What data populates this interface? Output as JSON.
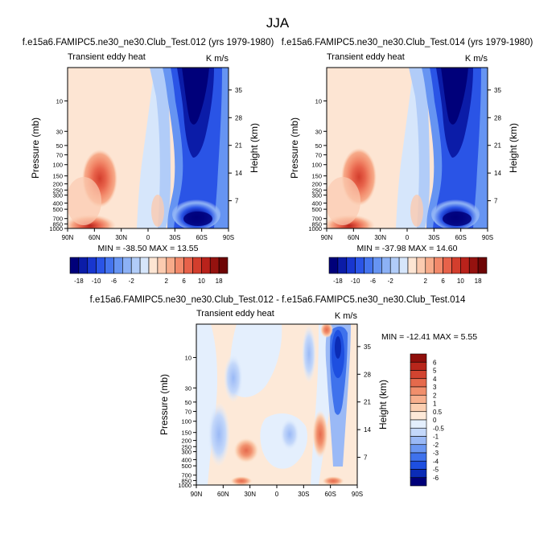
{
  "figure_title": "JJA",
  "palette": {
    "neg": [
      "#00007a",
      "#0b1ca8",
      "#1836cf",
      "#2a54e6",
      "#4474ee",
      "#6694f2",
      "#8cb1f5",
      "#b1ccf8",
      "#d6e6fb"
    ],
    "pos": [
      "#fde5d3",
      "#fbcbb0",
      "#f7ab8a",
      "#f2896a",
      "#e7624a",
      "#d33e2d",
      "#b9221b",
      "#95120f",
      "#6e0505"
    ],
    "diff_levels": [
      "#00007a",
      "#0b2cb6",
      "#1e4fe0",
      "#3f72ec",
      "#6b97f2",
      "#9ab9f6",
      "#c4d8fa",
      "#e4effd",
      "#fde9d8",
      "#fbcfb1",
      "#f7af8d",
      "#f18f6c",
      "#e56a4c",
      "#d24430",
      "#b8261b",
      "#8f0e0a"
    ]
  },
  "chart_data": [
    {
      "type": "heatmap",
      "id": "panel-1",
      "title": "f.e15a6.FAMIPC5.ne30_ne30.Club_Test.012 (yrs 1979-1980)",
      "left_label": "Transient eddy heat",
      "right_label": "K m/s",
      "xlabel": "",
      "ylabel": "Pressure (mb)",
      "ylabel_right": "Height (km)",
      "x_ticks": [
        "90N",
        "60N",
        "30N",
        "0",
        "30S",
        "60S",
        "90S"
      ],
      "x_values": [
        90,
        60,
        30,
        0,
        -30,
        -60,
        -90
      ],
      "y_ticks": [
        "10",
        "30",
        "50",
        "70",
        "100",
        "150",
        "200",
        "250",
        "300",
        "400",
        "500",
        "700",
        "850",
        "1000"
      ],
      "y_values": [
        10,
        30,
        50,
        70,
        100,
        150,
        200,
        250,
        300,
        400,
        500,
        700,
        850,
        1000
      ],
      "ylim": [
        1000,
        3
      ],
      "height_ticks": [
        "35",
        "28",
        "21",
        "14",
        "7"
      ],
      "height_values": [
        35,
        28,
        21,
        14,
        7
      ],
      "min_max_text": "MIN = -38.50  MAX = 13.55",
      "min": -38.5,
      "max": 13.55,
      "colorbar_labels": [
        "-18",
        "-10",
        "-6",
        "-2",
        "2",
        "6",
        "10",
        "18"
      ],
      "features": [
        {
          "lat": -52,
          "p": 3,
          "value": -38.5
        },
        {
          "lat": -58,
          "p": 900,
          "value": -30
        },
        {
          "lat": 58,
          "p": 180,
          "value": 9
        },
        {
          "lat": 62,
          "p": 900,
          "value": 13.55
        },
        {
          "lat": -5,
          "p": 400,
          "value": -1.5
        }
      ]
    },
    {
      "type": "heatmap",
      "id": "panel-2",
      "title": "f.e15a6.FAMIPC5.ne30_ne30.Club_Test.014 (yrs 1979-1980)",
      "left_label": "Transient eddy heat",
      "right_label": "K m/s",
      "xlabel": "",
      "ylabel": "Pressure (mb)",
      "ylabel_right": "Height (km)",
      "x_ticks": [
        "90N",
        "60N",
        "30N",
        "0",
        "30S",
        "60S",
        "90S"
      ],
      "x_values": [
        90,
        60,
        30,
        0,
        -30,
        -60,
        -90
      ],
      "y_ticks": [
        "10",
        "30",
        "50",
        "70",
        "100",
        "150",
        "200",
        "250",
        "300",
        "400",
        "500",
        "700",
        "850",
        "1000"
      ],
      "y_values": [
        10,
        30,
        50,
        70,
        100,
        150,
        200,
        250,
        300,
        400,
        500,
        700,
        850,
        1000
      ],
      "ylim": [
        1000,
        3
      ],
      "height_ticks": [
        "35",
        "28",
        "21",
        "14",
        "7"
      ],
      "height_values": [
        35,
        28,
        21,
        14,
        7
      ],
      "min_max_text": "MIN = -37.98  MAX = 14.60",
      "min": -37.98,
      "max": 14.6,
      "colorbar_labels": [
        "-18",
        "-10",
        "-6",
        "-2",
        "2",
        "6",
        "10",
        "18"
      ],
      "features": [
        {
          "lat": -52,
          "p": 3,
          "value": -37.98
        },
        {
          "lat": -58,
          "p": 900,
          "value": -30
        },
        {
          "lat": 58,
          "p": 180,
          "value": 9.5
        },
        {
          "lat": 62,
          "p": 900,
          "value": 14.6
        },
        {
          "lat": -5,
          "p": 400,
          "value": -1.5
        }
      ]
    },
    {
      "type": "heatmap",
      "id": "panel-3",
      "title": "f.e15a6.FAMIPC5.ne30_ne30.Club_Test.012 - f.e15a6.FAMIPC5.ne30_ne30.Club_Test.014",
      "left_label": "Transient eddy heat",
      "right_label": "K m/s",
      "xlabel": "",
      "ylabel": "Pressure (mb)",
      "ylabel_right": "Height (km)",
      "x_ticks": [
        "90N",
        "60N",
        "30N",
        "0",
        "30S",
        "60S",
        "90S"
      ],
      "x_values": [
        90,
        60,
        30,
        0,
        -30,
        -60,
        -90
      ],
      "y_ticks": [
        "10",
        "30",
        "50",
        "70",
        "100",
        "150",
        "200",
        "250",
        "300",
        "400",
        "500",
        "700",
        "850",
        "1000"
      ],
      "y_values": [
        10,
        30,
        50,
        70,
        100,
        150,
        200,
        250,
        300,
        400,
        500,
        700,
        850,
        1000
      ],
      "ylim": [
        1000,
        3
      ],
      "height_ticks": [
        "35",
        "28",
        "21",
        "14",
        "7"
      ],
      "height_values": [
        35,
        28,
        21,
        14,
        7
      ],
      "min_max_text": "MIN = -12.41  MAX =   5.55",
      "min": -12.41,
      "max": 5.55,
      "colorbar_labels": [
        "6",
        "5",
        "4",
        "3",
        "2",
        "1",
        "0.5",
        "0",
        "-0.5",
        "-1",
        "-2",
        "-3",
        "-4",
        "-5",
        "-6"
      ],
      "features": [
        {
          "lat": -68,
          "p": 10,
          "value": -12.41
        },
        {
          "lat": -55,
          "p": 4,
          "value": 5.55
        },
        {
          "lat": -45,
          "p": 220,
          "value": 3
        },
        {
          "lat": 60,
          "p": 200,
          "value": -2
        },
        {
          "lat": 45,
          "p": 600,
          "value": 2
        }
      ]
    }
  ]
}
